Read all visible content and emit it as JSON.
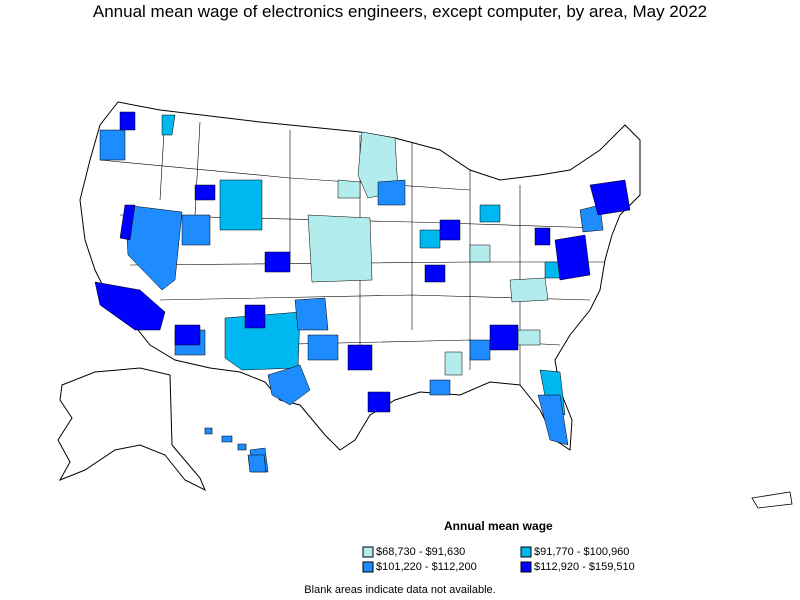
{
  "title": "Annual mean wage of electronics engineers, except computer, by area, May 2022",
  "legend": {
    "title": "Annual mean wage",
    "items": [
      {
        "label": "$68,730 - $91,630",
        "color": "#b3ecec"
      },
      {
        "label": "$91,770 - $100,960",
        "color": "#00b8f0"
      },
      {
        "label": "$101,220 - $112,200",
        "color": "#1e8cff"
      },
      {
        "label": "$112,920 - $159,510",
        "color": "#0000ff"
      }
    ]
  },
  "note": "Blank areas indicate data not available.",
  "colors": {
    "no_data": "#ffffff",
    "outline": "#000000"
  }
}
